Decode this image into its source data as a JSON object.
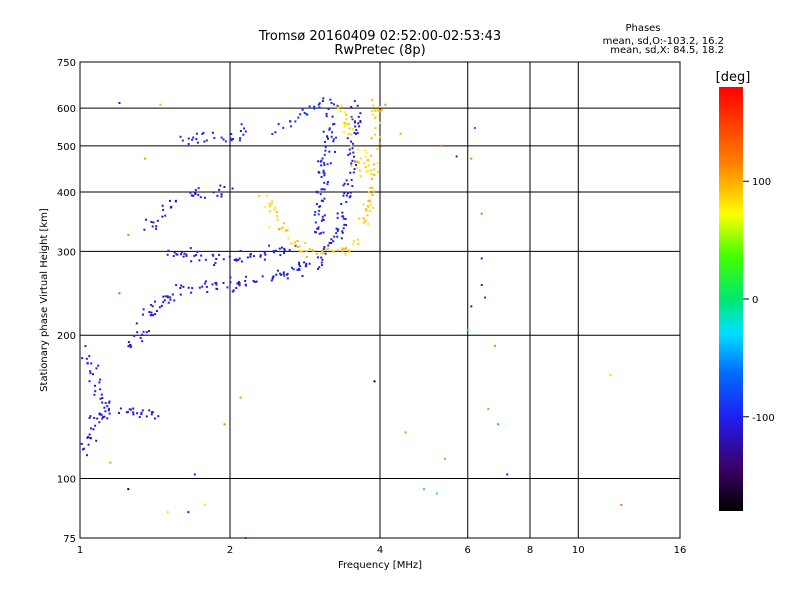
{
  "chart_data": {
    "type": "scatter",
    "title": "Tromsø 20160409 02:52:00-02:53:43",
    "subtitle": "RwPretec (8p)",
    "stats": {
      "heading": "Phases",
      "line1": "mean, sd,O:-103.2, 16.2",
      "line2": "mean, sd,X:  84.5, 18.2"
    },
    "xlabel": "Frequency [MHz]",
    "ylabel": "Stationary phase Virtual Height [km]",
    "x_scale": "log",
    "y_scale": "log",
    "xlim": [
      1,
      16
    ],
    "ylim": [
      75,
      750
    ],
    "x_ticks": [
      1,
      2,
      4,
      6,
      8,
      10,
      16
    ],
    "y_ticks": [
      75,
      100,
      200,
      300,
      400,
      500,
      600,
      750
    ],
    "x_gridlines": [
      2,
      4,
      6,
      8,
      10
    ],
    "y_gridlines": [
      100,
      200,
      300,
      400,
      500,
      600
    ],
    "grid": true,
    "colorbar": {
      "label": "[deg]",
      "range": [
        -180,
        180
      ],
      "ticks": [
        100,
        0,
        -100
      ]
    },
    "traces": [
      {
        "mode": "O",
        "phase": -105,
        "phase_spread": 15,
        "density": 6,
        "points": [
          [
            1.25,
            190
          ],
          [
            1.3,
            198
          ],
          [
            1.35,
            212
          ],
          [
            1.4,
            228
          ],
          [
            1.5,
            240
          ],
          [
            1.6,
            248
          ],
          [
            1.8,
            252
          ],
          [
            2.0,
            255
          ],
          [
            2.3,
            260
          ],
          [
            2.6,
            268
          ],
          [
            2.9,
            280
          ],
          [
            3.1,
            295
          ],
          [
            3.3,
            330
          ],
          [
            3.45,
            400
          ],
          [
            3.55,
            480
          ],
          [
            3.6,
            560
          ],
          [
            3.55,
            610
          ]
        ]
      },
      {
        "mode": "O",
        "phase": -105,
        "phase_spread": 15,
        "density": 5,
        "points": [
          [
            1.45,
            300
          ],
          [
            1.6,
            295
          ],
          [
            1.8,
            290
          ],
          [
            2.1,
            292
          ],
          [
            2.4,
            298
          ],
          [
            2.7,
            302
          ]
        ]
      },
      {
        "mode": "O",
        "phase": -110,
        "phase_spread": 15,
        "density": 4,
        "points": [
          [
            1.35,
            330
          ],
          [
            1.45,
            360
          ],
          [
            1.55,
            380
          ],
          [
            1.7,
            395
          ],
          [
            1.85,
            400
          ],
          [
            2.05,
            410
          ]
        ]
      },
      {
        "mode": "O",
        "phase": -100,
        "phase_spread": 15,
        "density": 5,
        "points": [
          [
            1.6,
            510
          ],
          [
            1.75,
            515
          ],
          [
            1.9,
            520
          ],
          [
            2.1,
            530
          ],
          [
            2.2,
            545
          ]
        ]
      },
      {
        "mode": "O",
        "phase": -95,
        "phase_spread": 12,
        "density": 5,
        "points": [
          [
            2.5,
            545
          ],
          [
            2.7,
            570
          ],
          [
            2.9,
            600
          ],
          [
            3.1,
            610
          ],
          [
            3.3,
            615
          ]
        ]
      },
      {
        "mode": "O",
        "phase": -100,
        "phase_spread": 18,
        "density": 7,
        "points": [
          [
            3.0,
            320
          ],
          [
            3.05,
            380
          ],
          [
            3.1,
            450
          ],
          [
            3.15,
            520
          ],
          [
            3.2,
            580
          ]
        ]
      },
      {
        "mode": "O",
        "phase": -108,
        "phase_spread": 15,
        "density": 6,
        "points": [
          [
            1.0,
            110
          ],
          [
            1.05,
            125
          ],
          [
            1.1,
            135
          ],
          [
            1.2,
            140
          ],
          [
            1.3,
            138
          ],
          [
            1.45,
            135
          ]
        ]
      },
      {
        "mode": "O",
        "phase": -108,
        "phase_spread": 15,
        "density": 5,
        "points": [
          [
            1.0,
            190
          ],
          [
            1.05,
            170
          ],
          [
            1.08,
            155
          ],
          [
            1.12,
            145
          ],
          [
            1.15,
            135
          ]
        ]
      },
      {
        "mode": "X",
        "phase": 90,
        "phase_spread": 18,
        "density": 5,
        "points": [
          [
            2.35,
            400
          ],
          [
            2.45,
            360
          ],
          [
            2.6,
            320
          ],
          [
            2.8,
            300
          ],
          [
            3.0,
            300
          ],
          [
            3.2,
            302
          ],
          [
            3.5,
            300
          ],
          [
            3.7,
            320
          ],
          [
            3.8,
            380
          ],
          [
            3.85,
            450
          ],
          [
            3.9,
            530
          ],
          [
            3.95,
            630
          ]
        ]
      },
      {
        "mode": "X",
        "phase": 85,
        "phase_spread": 20,
        "density": 5,
        "points": [
          [
            3.3,
            620
          ],
          [
            3.45,
            560
          ],
          [
            3.55,
            500
          ],
          [
            3.65,
            450
          ],
          [
            3.75,
            420
          ]
        ]
      }
    ],
    "scattered_points": [
      [
        1.2,
        615,
        -110
      ],
      [
        1.45,
        610,
        100
      ],
      [
        1.35,
        470,
        110
      ],
      [
        1.25,
        325,
        120
      ],
      [
        1.2,
        245,
        140
      ],
      [
        1.15,
        108,
        40
      ],
      [
        1.25,
        95,
        -170
      ],
      [
        1.5,
        85,
        60
      ],
      [
        1.65,
        85,
        -110
      ],
      [
        1.7,
        102,
        -100
      ],
      [
        1.78,
        88,
        80
      ],
      [
        1.95,
        130,
        120
      ],
      [
        2.1,
        148,
        110
      ],
      [
        2.15,
        75,
        -40
      ],
      [
        4.5,
        125,
        110
      ],
      [
        4.9,
        95,
        -20
      ],
      [
        5.4,
        110,
        110
      ],
      [
        5.3,
        500,
        120
      ],
      [
        5.7,
        475,
        -110
      ],
      [
        6.2,
        545,
        -60
      ],
      [
        6.1,
        470,
        120
      ],
      [
        6.4,
        360,
        120
      ],
      [
        6.4,
        290,
        -110
      ],
      [
        6.5,
        240,
        -90
      ],
      [
        6.4,
        255,
        -110
      ],
      [
        6.0,
        205,
        -20
      ],
      [
        6.1,
        230,
        -110
      ],
      [
        6.8,
        190,
        120
      ],
      [
        6.6,
        140,
        110
      ],
      [
        6.9,
        130,
        -40
      ],
      [
        7.2,
        102,
        -100
      ],
      [
        11.6,
        165,
        60
      ],
      [
        12.2,
        88,
        120
      ],
      [
        5.2,
        93,
        -30
      ],
      [
        3.9,
        160,
        -170
      ],
      [
        4.4,
        530,
        100
      ],
      [
        4.1,
        610,
        110
      ]
    ]
  }
}
